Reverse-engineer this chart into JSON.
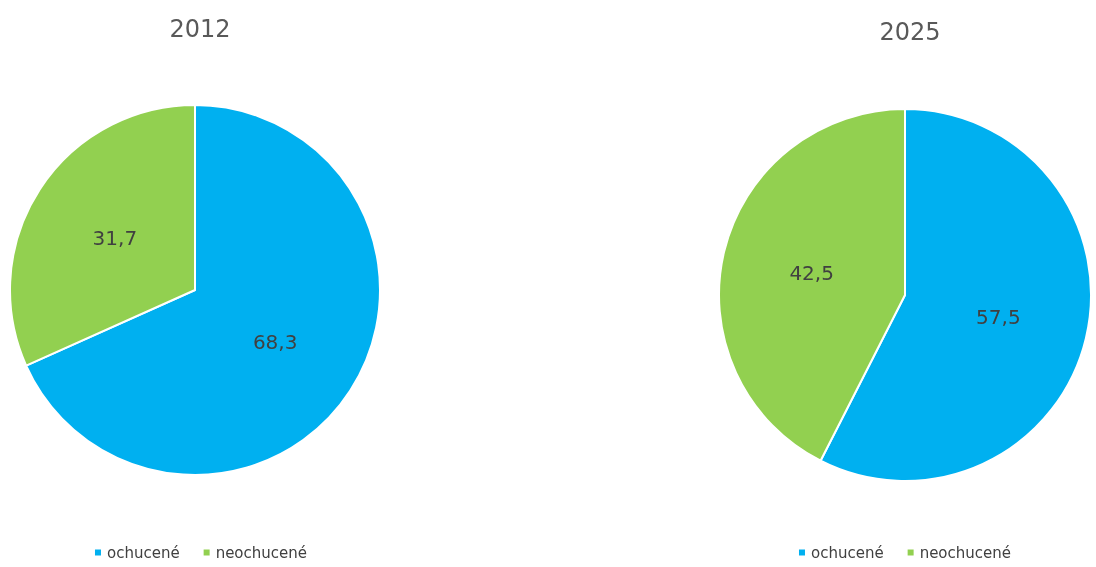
{
  "chart_data": [
    {
      "type": "pie",
      "title": "2012",
      "categories": [
        "ochucené",
        "neochucené"
      ],
      "values": [
        68.3,
        31.7
      ],
      "colors": [
        "#00b0f0",
        "#92d050"
      ],
      "value_labels": [
        "68,3",
        "31,7"
      ],
      "legend": "bottom"
    },
    {
      "type": "pie",
      "title": "2025",
      "categories": [
        "ochucené",
        "neochucené"
      ],
      "values": [
        57.5,
        42.5
      ],
      "colors": [
        "#00b0f0",
        "#92d050"
      ],
      "value_labels": [
        "57,5",
        "42,5"
      ],
      "legend": "bottom"
    }
  ]
}
